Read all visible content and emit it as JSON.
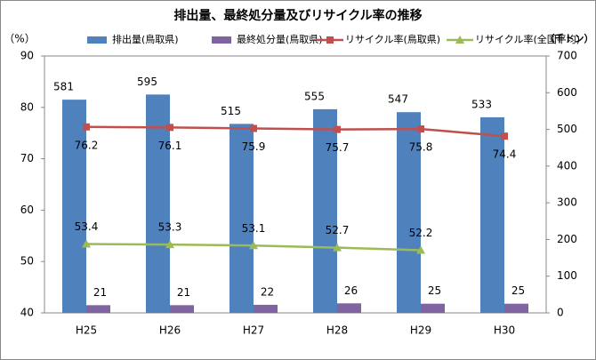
{
  "chart_data": {
    "type": "bar_line",
    "title": "排出量、最終処分量及びリサイクル率の推移",
    "y_label": "（%）",
    "y2_label": "（千トン）",
    "categories": [
      "H25",
      "H26",
      "H27",
      "H28",
      "H29",
      "H30"
    ],
    "ylim": [
      40,
      90
    ],
    "yticks": [
      40,
      50,
      60,
      70,
      80,
      90
    ],
    "y2lim": [
      0,
      700
    ],
    "y2ticks": [
      0,
      100,
      200,
      300,
      400,
      500,
      600,
      700
    ],
    "grid": false,
    "series": [
      {
        "name": "排出量(鳥取県)",
        "kind": "bar",
        "axis": "y2",
        "color": "#4f81bd",
        "values": [
          581,
          595,
          515,
          555,
          547,
          533
        ]
      },
      {
        "name": "最終処分量(鳥取県)",
        "kind": "bar",
        "axis": "y2",
        "color": "#8064a2",
        "values": [
          21,
          21,
          22,
          26,
          25,
          25
        ]
      },
      {
        "name": "リサイクル率(鳥取県)",
        "kind": "line",
        "axis": "y",
        "marker": "square",
        "color": "#c0504d",
        "values": [
          76.2,
          76.1,
          75.9,
          75.7,
          75.8,
          74.4
        ]
      },
      {
        "name": "リサイクル率(全国平均)",
        "kind": "line",
        "axis": "y",
        "marker": "triangle",
        "color": "#9bbb59",
        "values": [
          53.4,
          53.3,
          53.1,
          52.7,
          52.2,
          null
        ]
      }
    ]
  }
}
